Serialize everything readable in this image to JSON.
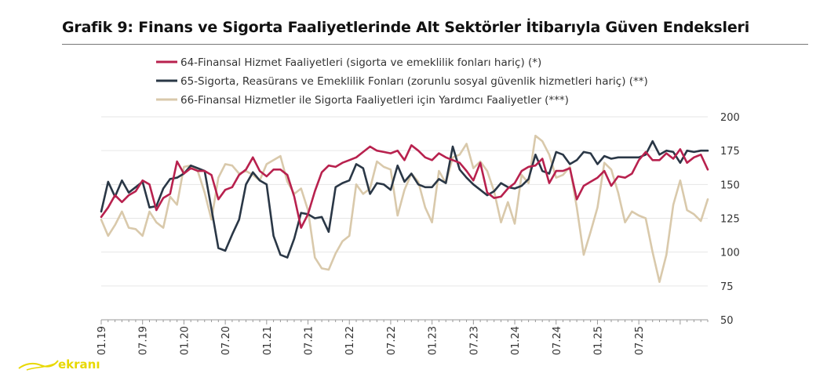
{
  "page": {
    "title": "Grafik 9:  Finans ve Sigorta Faaliyetlerinde Alt Sektörler İtibarıyla Güven Endeksleri"
  },
  "watermark": {
    "text": "ekranı"
  },
  "chart_data": {
    "type": "line",
    "title": "Grafik 9:  Finans ve Sigorta Faaliyetlerinde Alt Sektörler İtibarıyla Güven Endeksleri",
    "xlabel": "",
    "ylabel": "",
    "ylim": [
      50,
      200
    ],
    "yticks": [
      50,
      75,
      100,
      125,
      150,
      175,
      200
    ],
    "y_axis_side": "right",
    "grid": true,
    "legend_position": "top",
    "x_tick_labels": [
      "01.19",
      "07.19",
      "01.20",
      "07.20",
      "01.21",
      "07.21",
      "01.22",
      "07.22",
      "01.23",
      "07.23",
      "01.24",
      "07.24",
      "01.25",
      "07.25"
    ],
    "x_start": "2019-01",
    "x_end": "2025-07",
    "frequency": "monthly",
    "series": [
      {
        "name": "64-Finansal Hizmet Faaliyetleri (sigorta ve emeklilik fonları hariç) (*)",
        "color": "#b8214e",
        "values": [
          126,
          133,
          142,
          137,
          142,
          145,
          153,
          150,
          131,
          140,
          143,
          167,
          158,
          162,
          160,
          160,
          157,
          139,
          146,
          148,
          157,
          161,
          170,
          160,
          156,
          161,
          161,
          157,
          141,
          118,
          128,
          145,
          159,
          164,
          163,
          166,
          168,
          170,
          174,
          178,
          175,
          174,
          173,
          175,
          168,
          179,
          175,
          170,
          168,
          173,
          170,
          168,
          166,
          160,
          153,
          166,
          144,
          140,
          141,
          147,
          151,
          160,
          163,
          164,
          169,
          151,
          160,
          160,
          162,
          139,
          149,
          152,
          155,
          160,
          149,
          156,
          155,
          158,
          168,
          174,
          168,
          168,
          173,
          169,
          176,
          166,
          170,
          172,
          161
        ]
      },
      {
        "name": "65-Sigorta, Reasürans ve Emeklilik Fonları (zorunlu sosyal güvenlik hizmetleri hariç) (**)",
        "color": "#2a3746",
        "values": [
          130,
          152,
          141,
          153,
          144,
          148,
          152,
          133,
          134,
          147,
          154,
          155,
          158,
          164,
          162,
          160,
          132,
          103,
          101,
          113,
          124,
          150,
          159,
          153,
          150,
          112,
          98,
          96,
          110,
          129,
          128,
          125,
          126,
          115,
          148,
          151,
          153,
          165,
          162,
          143,
          151,
          150,
          146,
          164,
          152,
          158,
          150,
          148,
          148,
          154,
          151,
          178,
          161,
          155,
          150,
          146,
          142,
          145,
          151,
          148,
          147,
          149,
          154,
          172,
          160,
          158,
          174,
          172,
          165,
          168,
          174,
          173,
          165,
          171,
          169,
          170,
          170,
          170,
          170,
          172,
          182,
          172,
          175,
          174,
          166,
          175,
          174,
          175,
          175
        ]
      },
      {
        "name": "66-Finansal Hizmetler ile Sigorta Faaliyetleri için Yardımcı Faaliyetler (***)",
        "color": "#d9c9ab",
        "values": [
          124,
          112,
          120,
          130,
          118,
          117,
          112,
          130,
          122,
          118,
          141,
          135,
          163,
          164,
          160,
          144,
          124,
          155,
          165,
          164,
          158,
          160,
          157,
          153,
          165,
          168,
          171,
          152,
          143,
          147,
          131,
          96,
          88,
          87,
          99,
          108,
          112,
          150,
          143,
          147,
          167,
          163,
          161,
          127,
          146,
          158,
          152,
          133,
          122,
          160,
          151,
          170,
          172,
          180,
          162,
          167,
          160,
          145,
          122,
          137,
          121,
          157,
          151,
          186,
          182,
          172,
          155,
          157,
          163,
          133,
          98,
          115,
          133,
          166,
          161,
          144,
          122,
          130,
          127,
          125,
          100,
          78,
          98,
          135,
          153,
          131,
          128,
          123,
          139
        ]
      }
    ]
  }
}
